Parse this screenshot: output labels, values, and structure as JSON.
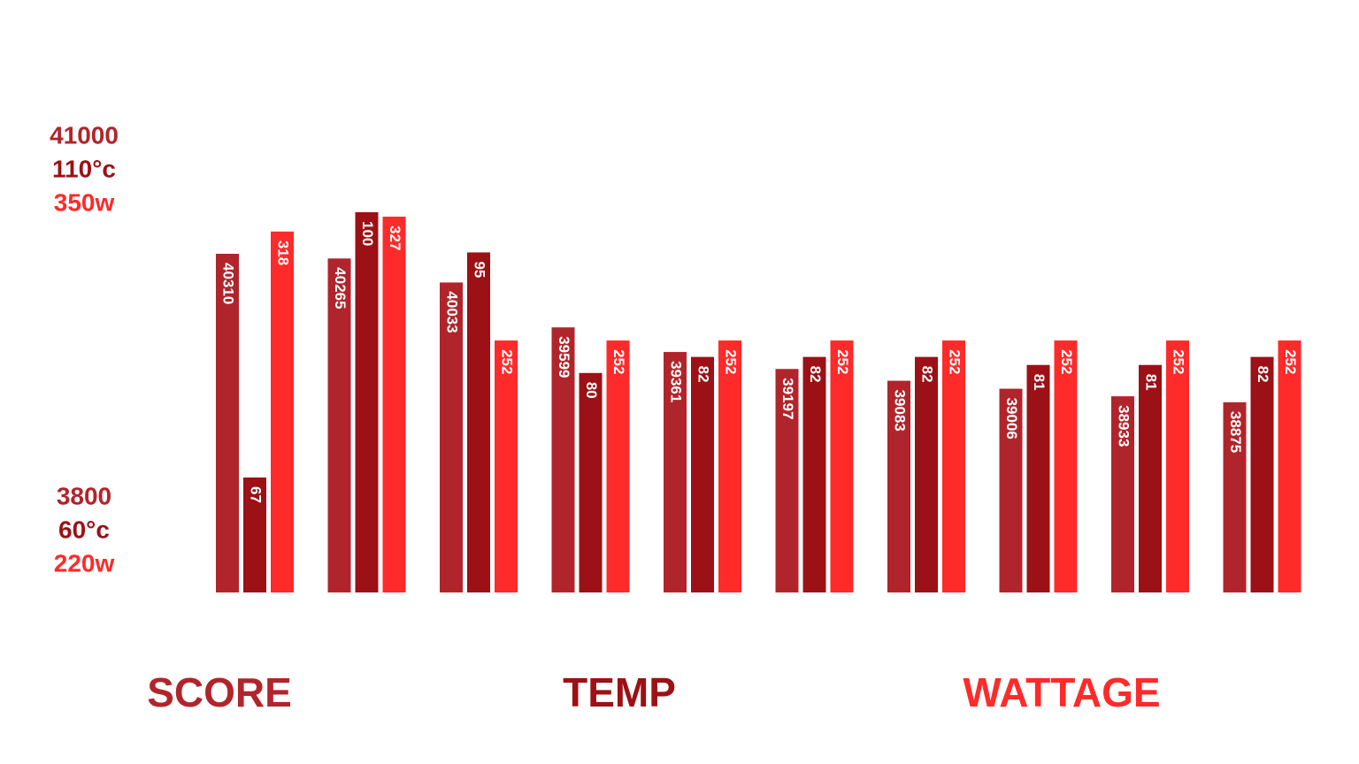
{
  "chart_data": {
    "type": "bar",
    "axis_labels": {
      "top": [
        "41000",
        "110°c",
        "350w"
      ],
      "bottom": [
        "3800",
        "60°c",
        "220w"
      ]
    },
    "series": [
      {
        "name": "SCORE",
        "color": "#b0252b",
        "ylim": [
          37037,
          41481
        ],
        "values": [
          40310,
          40265,
          40033,
          39599,
          39361,
          39197,
          39083,
          39006,
          38933,
          38875
        ]
      },
      {
        "name": "TEMP",
        "color": "#9b1116",
        "ylim": [
          52.7,
          109.9
        ],
        "values": [
          67,
          100,
          95,
          80,
          82,
          82,
          82,
          81,
          81,
          82
        ]
      },
      {
        "name": "WATTAGE",
        "color": "#ff2a2a",
        "ylim": [
          99.4,
          377.9
        ],
        "values": [
          318,
          327,
          252,
          252,
          252,
          252,
          252,
          252,
          252,
          252
        ]
      }
    ]
  }
}
